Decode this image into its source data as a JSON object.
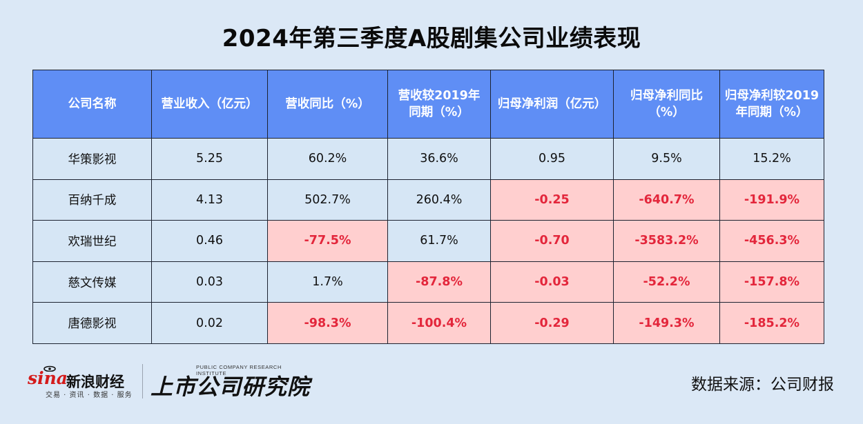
{
  "title": "2024年第三季度A股剧集公司业绩表现",
  "table": {
    "headers": [
      "公司名称",
      "营业收入（亿元）",
      "营收同比（%）",
      "营收较2019年同期（%）",
      "归母净利润（亿元）",
      "归母净利同比（%）",
      "归母净利较2019年同期（%）"
    ],
    "rows": [
      {
        "cells": [
          "华策影视",
          "5.25",
          "60.2%",
          "36.6%",
          "0.95",
          "9.5%",
          "15.2%"
        ],
        "negative": [
          false,
          false,
          false,
          false,
          false,
          false,
          false
        ]
      },
      {
        "cells": [
          "百纳千成",
          "4.13",
          "502.7%",
          "260.4%",
          "-0.25",
          "-640.7%",
          "-191.9%"
        ],
        "negative": [
          false,
          false,
          false,
          false,
          true,
          true,
          true
        ]
      },
      {
        "cells": [
          "欢瑞世纪",
          "0.46",
          "-77.5%",
          "61.7%",
          "-0.70",
          "-3583.2%",
          "-456.3%"
        ],
        "negative": [
          false,
          false,
          true,
          false,
          true,
          true,
          true
        ]
      },
      {
        "cells": [
          "慈文传媒",
          "0.03",
          "1.7%",
          "-87.8%",
          "-0.03",
          "-52.2%",
          "-157.8%"
        ],
        "negative": [
          false,
          false,
          false,
          true,
          true,
          true,
          true
        ]
      },
      {
        "cells": [
          "唐德影视",
          "0.02",
          "-98.3%",
          "-100.4%",
          "-0.29",
          "-149.3%",
          "-185.2%"
        ],
        "negative": [
          false,
          false,
          true,
          true,
          true,
          true,
          true
        ]
      }
    ]
  },
  "footer": {
    "sina_brand": "sina",
    "sina_name": "新浪财经",
    "sina_tagline": "交易 · 资讯 · 数据 · 服务",
    "institute_tag": "PUBLIC COMPANY RESEARCH INSTITUTE",
    "institute_name": "上市公司研究院",
    "source": "数据来源：公司财报"
  },
  "colors": {
    "page_bg": "#dbe8f6",
    "header_bg": "#5f8ef5",
    "cell_bg": "#d6e6f5",
    "negative_bg": "#ffcfcf",
    "negative_text": "#e3263b",
    "brand_red": "#d41b1b"
  }
}
